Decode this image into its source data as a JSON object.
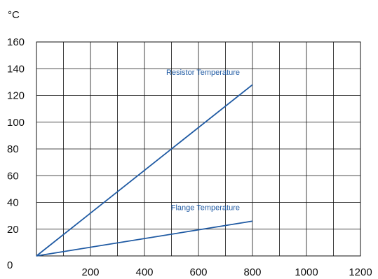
{
  "chart_data": {
    "type": "line",
    "y_unit_label": "°C",
    "xlabel": "",
    "ylabel": "",
    "xlim": [
      0,
      1200
    ],
    "ylim": [
      0,
      160
    ],
    "x_ticks": [
      200,
      400,
      600,
      800,
      1000,
      1200
    ],
    "y_ticks": [
      0,
      20,
      40,
      60,
      80,
      100,
      120,
      140,
      160
    ],
    "grid": true,
    "series": [
      {
        "name": "Resistor Temperature",
        "color": "#1f5aa3",
        "x": [
          0,
          800
        ],
        "y": [
          0,
          128
        ]
      },
      {
        "name": "Flange Temperature",
        "color": "#1f5aa3",
        "x": [
          0,
          800
        ],
        "y": [
          0,
          26
        ]
      }
    ]
  }
}
